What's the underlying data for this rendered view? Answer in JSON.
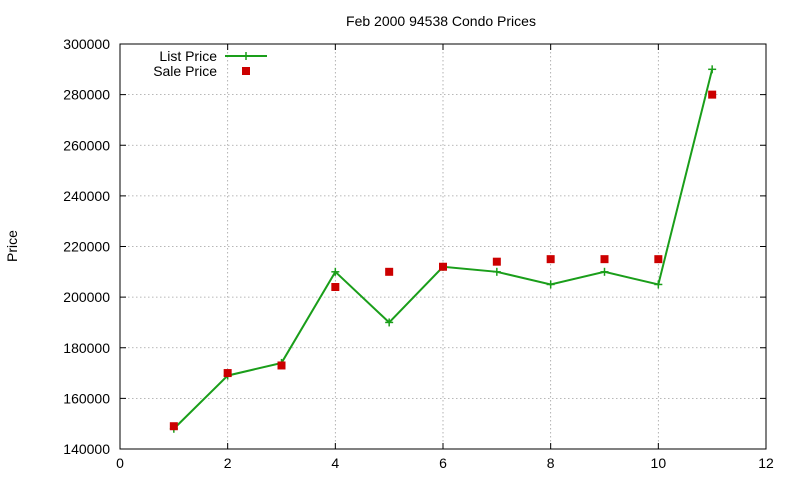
{
  "chart_data": {
    "type": "line",
    "title": "Feb 2000 94538 Condo Prices",
    "xlabel": "",
    "ylabel": "Price",
    "xlim": [
      0,
      12
    ],
    "ylim": [
      140000,
      300000
    ],
    "xticks": [
      0,
      2,
      4,
      6,
      8,
      10,
      12
    ],
    "yticks": [
      140000,
      160000,
      180000,
      200000,
      220000,
      240000,
      260000,
      280000,
      300000
    ],
    "grid": true,
    "legend": "top-left",
    "series": [
      {
        "name": "List Price",
        "style": "line+cross",
        "color": "#1a9e1a",
        "x": [
          1,
          2,
          3,
          4,
          5,
          6,
          7,
          8,
          9,
          10,
          11
        ],
        "values": [
          148000,
          169000,
          174000,
          210000,
          190000,
          212000,
          210000,
          205000,
          210000,
          205000,
          290000
        ]
      },
      {
        "name": "Sale Price",
        "style": "square",
        "color": "#cc0000",
        "x": [
          1,
          2,
          3,
          4,
          5,
          6,
          7,
          8,
          9,
          10,
          11
        ],
        "values": [
          149000,
          170000,
          173000,
          204000,
          210000,
          212000,
          214000,
          215000,
          215000,
          215000,
          280000
        ]
      }
    ]
  }
}
